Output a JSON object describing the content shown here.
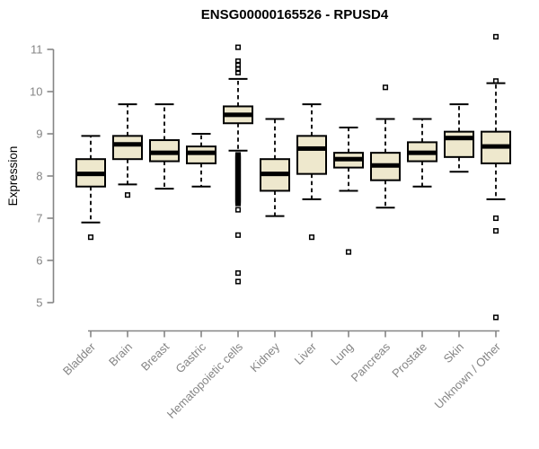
{
  "chart_data": {
    "type": "boxplot",
    "title": "ENSG00000165526 - RPUSD4",
    "ylabel": "Expression",
    "xlabel": "",
    "yticks": [
      5,
      6,
      7,
      8,
      9,
      10,
      11
    ],
    "ylim": [
      4.4,
      11.4
    ],
    "grid": false,
    "legend": "none",
    "categories": [
      "Bladder",
      "Brain",
      "Breast",
      "Gastric",
      "Hematopoietic cells",
      "Kidney",
      "Liver",
      "Lung",
      "Pancreas",
      "Prostate",
      "Skin",
      "Unknown / Other"
    ],
    "boxes": [
      {
        "category": "Bladder",
        "whisker_low": 6.9,
        "q1": 7.75,
        "median": 8.05,
        "q3": 8.4,
        "whisker_high": 8.95,
        "outliers": [
          6.55
        ]
      },
      {
        "category": "Brain",
        "whisker_low": 7.8,
        "q1": 8.4,
        "median": 8.75,
        "q3": 8.95,
        "whisker_high": 9.7,
        "outliers": [
          7.55
        ]
      },
      {
        "category": "Breast",
        "whisker_low": 7.7,
        "q1": 8.35,
        "median": 8.55,
        "q3": 8.85,
        "whisker_high": 9.7,
        "outliers": []
      },
      {
        "category": "Gastric",
        "whisker_low": 7.75,
        "q1": 8.3,
        "median": 8.55,
        "q3": 8.7,
        "whisker_high": 9.0,
        "outliers": []
      },
      {
        "category": "Hematopoietic cells",
        "whisker_low": 8.6,
        "q1": 9.25,
        "median": 9.45,
        "q3": 9.65,
        "whisker_high": 10.3,
        "outliers": [
          11.05,
          10.72,
          10.64,
          10.53,
          10.45,
          8.5,
          8.475,
          8.45,
          8.425,
          8.4,
          8.375,
          8.35,
          8.325,
          8.3,
          8.275,
          8.25,
          8.225,
          8.2,
          8.175,
          8.15,
          8.125,
          8.1,
          8.075,
          8.05,
          8.025,
          8.0,
          7.975,
          7.95,
          7.925,
          7.9,
          7.875,
          7.85,
          7.825,
          7.8,
          7.775,
          7.75,
          7.725,
          7.7,
          7.675,
          7.65,
          7.625,
          7.6,
          7.575,
          7.55,
          7.525,
          7.5,
          7.475,
          7.45,
          7.425,
          7.4,
          7.375,
          7.35,
          7.2,
          6.6,
          5.7,
          5.5
        ]
      },
      {
        "category": "Kidney",
        "whisker_low": 7.05,
        "q1": 7.65,
        "median": 8.05,
        "q3": 8.4,
        "whisker_high": 9.35,
        "outliers": []
      },
      {
        "category": "Liver",
        "whisker_low": 7.45,
        "q1": 8.05,
        "median": 8.65,
        "q3": 8.95,
        "whisker_high": 9.7,
        "outliers": [
          6.55
        ]
      },
      {
        "category": "Lung",
        "whisker_low": 7.65,
        "q1": 8.2,
        "median": 8.4,
        "q3": 8.55,
        "whisker_high": 9.15,
        "outliers": [
          6.2
        ]
      },
      {
        "category": "Pancreas",
        "whisker_low": 7.25,
        "q1": 7.9,
        "median": 8.25,
        "q3": 8.55,
        "whisker_high": 9.35,
        "outliers": [
          10.1
        ]
      },
      {
        "category": "Prostate",
        "whisker_low": 7.75,
        "q1": 8.35,
        "median": 8.55,
        "q3": 8.8,
        "whisker_high": 9.35,
        "outliers": []
      },
      {
        "category": "Skin",
        "whisker_low": 8.1,
        "q1": 8.45,
        "median": 8.9,
        "q3": 9.05,
        "whisker_high": 9.7,
        "outliers": []
      },
      {
        "category": "Unknown / Other",
        "whisker_low": 7.45,
        "q1": 8.3,
        "median": 8.7,
        "q3": 9.05,
        "whisker_high": 10.2,
        "outliers": [
          11.3,
          10.25,
          7.0,
          6.7,
          4.65
        ]
      }
    ],
    "colors": {
      "box_fill": "#EEE8CD",
      "box_border": "#000000",
      "median": "#000000",
      "whisker": "#000000",
      "outlier": "#000000",
      "axis": "#858585",
      "tick_label": "#858585",
      "title": "#000000",
      "background": "#ffffff"
    }
  }
}
